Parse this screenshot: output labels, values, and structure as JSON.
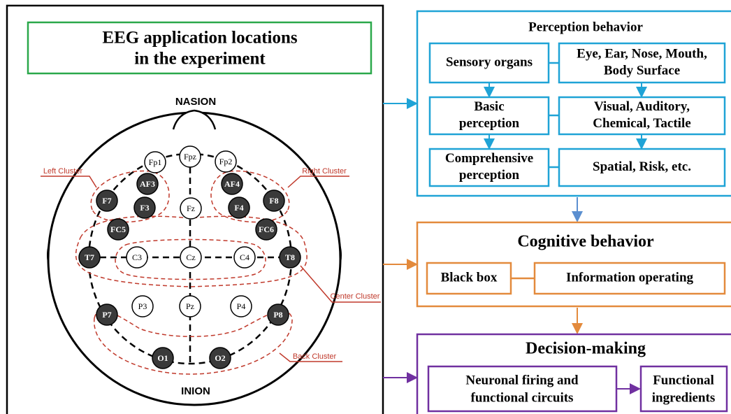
{
  "left_panel": {
    "title": [
      "EEG application locations",
      "in the experiment"
    ],
    "nasion": "NASION",
    "inion": "INION",
    "electrodes": [
      "Fp1",
      "Fpz",
      "Fp2",
      "AF3",
      "AF4",
      "F7",
      "F3",
      "Fz",
      "F4",
      "F8",
      "FC5",
      "FC6",
      "T7",
      "C3",
      "Cz",
      "C4",
      "T8",
      "P7",
      "P3",
      "Pz",
      "P4",
      "P8",
      "O1",
      "O2"
    ],
    "clusters": [
      "Left Cluster",
      "Right Cluster",
      "Center Cluster",
      "Back Cluster"
    ]
  },
  "perception": {
    "title": "Perception behavior",
    "boxes": [
      [
        "Sensory organs"
      ],
      [
        "Eye, Ear, Nose, Mouth,",
        "Body Surface"
      ],
      [
        "Basic",
        "perception"
      ],
      [
        "Visual, Auditory,",
        "Chemical, Tactile"
      ],
      [
        "Comprehensive",
        "perception"
      ],
      [
        "Spatial, Risk, etc."
      ]
    ]
  },
  "cognitive": {
    "title": "Cognitive behavior",
    "boxes": [
      "Black box",
      "Information operating"
    ]
  },
  "decision": {
    "title": "Decision-making",
    "boxes": [
      [
        "Neuronal firing and",
        "functional circuits"
      ],
      [
        "Functional",
        "ingredients"
      ]
    ]
  }
}
